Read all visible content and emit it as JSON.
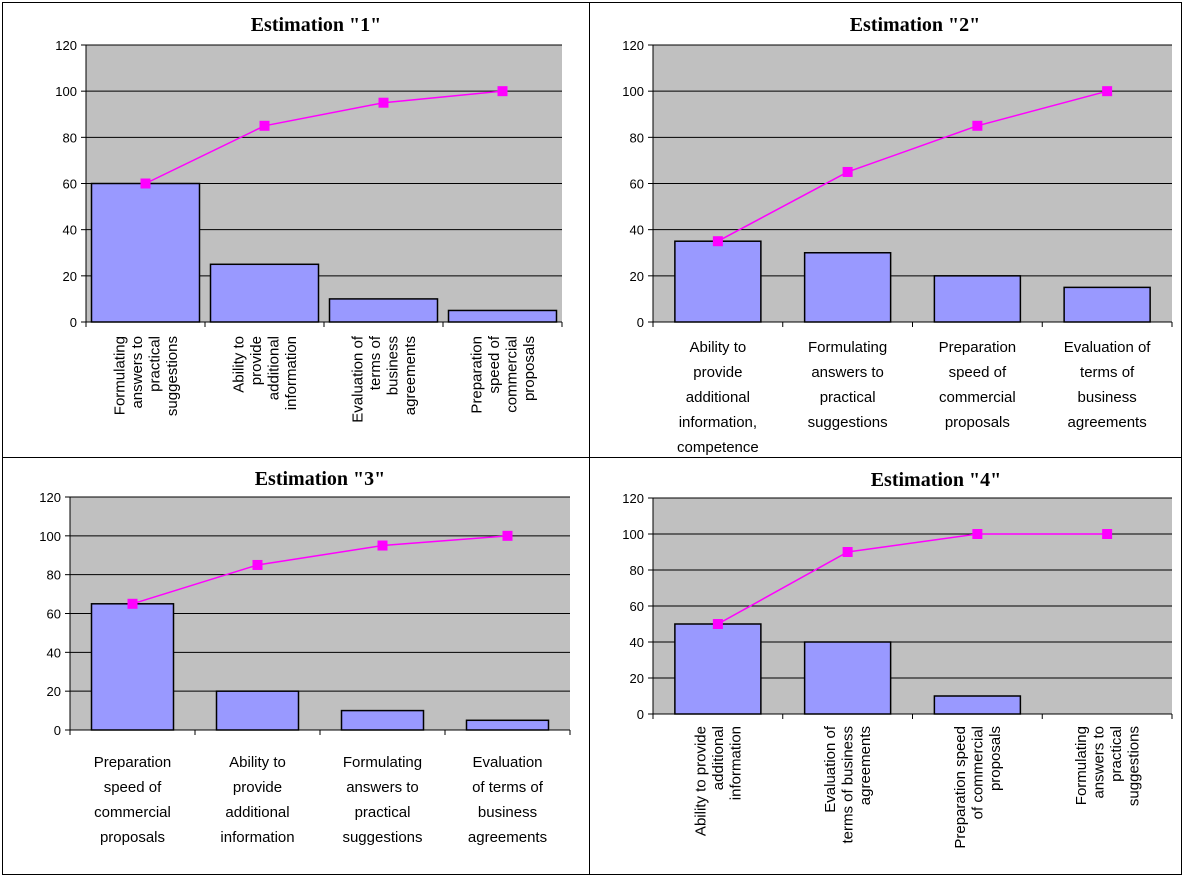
{
  "chart_data": [
    {
      "type": "bar",
      "title": "Estimation \"1\"",
      "categories": [
        [
          "Formulating",
          "answers to",
          "practical",
          "suggestions"
        ],
        [
          "Ability to",
          "provide",
          "additional",
          "information"
        ],
        [
          "Evaluation of",
          "terms of",
          "business",
          "agreements"
        ],
        [
          "Preparation",
          "speed of",
          "commercial",
          "proposals"
        ]
      ],
      "label_orientation": "vertical",
      "series": [
        {
          "values": [
            60,
            25,
            10,
            5
          ],
          "kind": "bar"
        },
        {
          "values": [
            60,
            85,
            95,
            100
          ],
          "kind": "line"
        }
      ],
      "ylim": [
        0,
        120
      ],
      "yticks": [
        "0",
        "20",
        "40",
        "60",
        "80",
        "100",
        "120"
      ],
      "grid": true
    },
    {
      "type": "bar",
      "title": "Estimation \"2\"",
      "categories": [
        [
          "Ability to",
          "provide",
          "additional",
          "information,",
          "competence"
        ],
        [
          "Formulating",
          "answers to",
          "practical",
          "suggestions"
        ],
        [
          "Preparation",
          "speed of",
          "commercial",
          "proposals"
        ],
        [
          "Evaluation of",
          "terms of",
          "business",
          "agreements"
        ]
      ],
      "label_orientation": "horizontal",
      "series": [
        {
          "values": [
            35,
            30,
            20,
            15
          ],
          "kind": "bar"
        },
        {
          "values": [
            35,
            65,
            85,
            100
          ],
          "kind": "line"
        }
      ],
      "ylim": [
        0,
        120
      ],
      "yticks": [
        "0",
        "20",
        "40",
        "60",
        "80",
        "100",
        "120"
      ],
      "grid": true
    },
    {
      "type": "bar",
      "title": "Estimation \"3\"",
      "categories": [
        [
          "Preparation",
          "speed of",
          "commercial",
          "proposals"
        ],
        [
          "Ability to",
          "provide",
          "additional",
          "information"
        ],
        [
          "Formulating",
          "answers to",
          "practical",
          "suggestions"
        ],
        [
          "Evaluation",
          "of terms of",
          "business",
          "agreements"
        ]
      ],
      "label_orientation": "horizontal",
      "series": [
        {
          "values": [
            65,
            20,
            10,
            5
          ],
          "kind": "bar"
        },
        {
          "values": [
            65,
            85,
            95,
            100
          ],
          "kind": "line"
        }
      ],
      "ylim": [
        0,
        120
      ],
      "yticks": [
        "0",
        "20",
        "40",
        "60",
        "80",
        "100",
        "120"
      ],
      "grid": true
    },
    {
      "type": "bar",
      "title": "Estimation \"4\"",
      "categories": [
        [
          "Ability to provide",
          "additional",
          "information"
        ],
        [
          "Evaluation of",
          "terms of business",
          "agreements"
        ],
        [
          "Preparation speed",
          "of commercial",
          "proposals"
        ],
        [
          "Formulating",
          "answers to",
          "practical",
          "suggestions"
        ]
      ],
      "label_orientation": "vertical",
      "series": [
        {
          "values": [
            50,
            40,
            10,
            0
          ],
          "kind": "bar"
        },
        {
          "values": [
            50,
            90,
            100,
            100
          ],
          "kind": "line"
        }
      ],
      "ylim": [
        0,
        120
      ],
      "yticks": [
        "0",
        "20",
        "40",
        "60",
        "80",
        "100",
        "120"
      ],
      "grid": true
    }
  ],
  "colors": {
    "plot_background": "#c0c0c0",
    "bar_fill": "#9999ff",
    "line": "#ff00ff",
    "marker": "#ff00ff",
    "gridline": "#000000"
  }
}
